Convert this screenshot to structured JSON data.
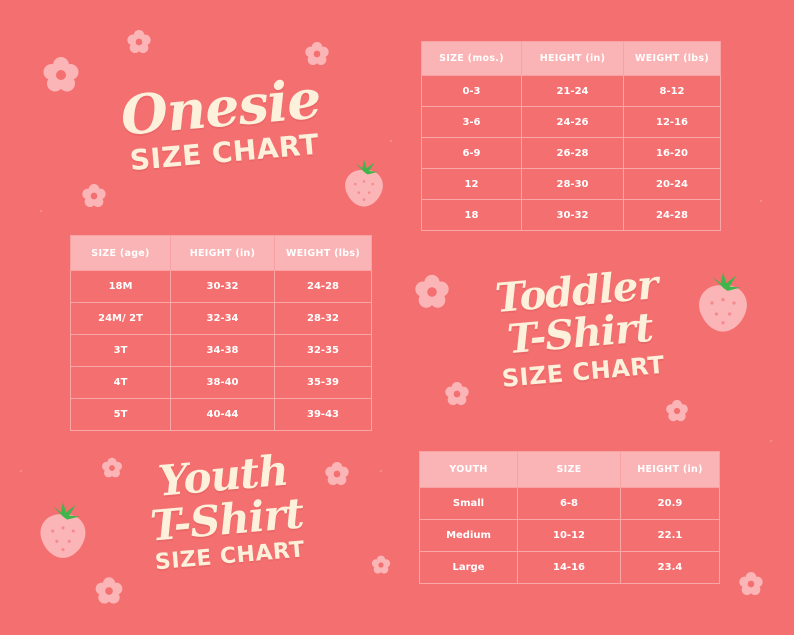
{
  "onesie": {
    "title_script": "Onesie",
    "title_sub": "SIZE CHART",
    "headers": [
      "SIZE (mos.)",
      "HEIGHT (in)",
      "WEIGHT (lbs)"
    ],
    "rows": [
      [
        "0-3",
        "21-24",
        "8-12"
      ],
      [
        "3-6",
        "24-26",
        "12-16"
      ],
      [
        "6-9",
        "26-28",
        "16-20"
      ],
      [
        "12",
        "28-30",
        "20-24"
      ],
      [
        "18",
        "30-32",
        "24-28"
      ]
    ]
  },
  "toddler": {
    "title_script_1": "Toddler",
    "title_script_2": "T-Shirt",
    "title_sub": "SIZE CHART",
    "headers": [
      "SIZE (age)",
      "HEIGHT (in)",
      "WEIGHT (lbs)"
    ],
    "rows": [
      [
        "18M",
        "30-32",
        "24-28"
      ],
      [
        "24M/ 2T",
        "32-34",
        "28-32"
      ],
      [
        "3T",
        "34-38",
        "32-35"
      ],
      [
        "4T",
        "38-40",
        "35-39"
      ],
      [
        "5T",
        "40-44",
        "39-43"
      ]
    ]
  },
  "youth": {
    "title_script_1": "Youth",
    "title_script_2": "T-Shirt",
    "title_sub": "SIZE CHART",
    "headers": [
      "YOUTH",
      "SIZE",
      "HEIGHT (in)"
    ],
    "rows": [
      [
        "Small",
        "6-8",
        "20.9"
      ],
      [
        "Medium",
        "10-12",
        "22.1"
      ],
      [
        "Large",
        "14-16",
        "23.4"
      ]
    ]
  },
  "colors": {
    "background": "#f46f70",
    "header_fill": "#fbb4b5",
    "title_cream": "#fdf1dc",
    "flower": "#fbb5b7",
    "strawberry": "#fbb5b7",
    "leaf": "#3fb54a"
  },
  "icons": [
    "flower-icon",
    "strawberry-icon"
  ]
}
